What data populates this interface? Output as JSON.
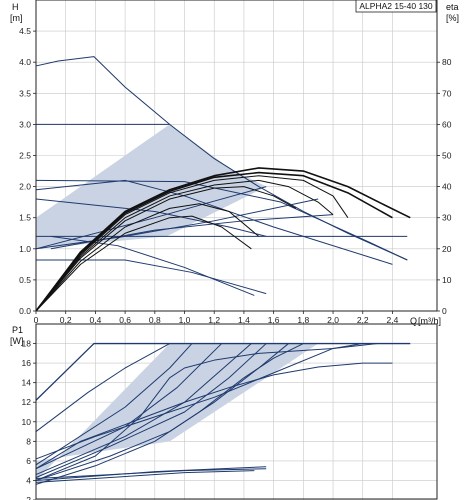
{
  "chart_data": [
    {
      "type": "line",
      "model_label": "ALPHA2 15-40 130",
      "ylabel": "H",
      "yunit": "[m]",
      "y2label": "eta",
      "y2unit": "[%]",
      "xlabel": "Q",
      "xunit": "[m³/h]",
      "xlim": [
        0,
        2.7
      ],
      "ylim": [
        0,
        5.0
      ],
      "y2lim": [
        0,
        100
      ],
      "xticks": [
        "0",
        "0,2",
        "0,4",
        "0,6",
        "0,8",
        "1,0",
        "1,2",
        "1,4",
        "1,6",
        "1,8",
        "2,0",
        "2,2",
        "2,4"
      ],
      "yticks": [
        "0.0",
        "0.5",
        "1.0",
        "1.5",
        "2.0",
        "2.5",
        "3.0",
        "3.5",
        "4.0",
        "4.5"
      ],
      "y2ticks": [
        "0",
        "10",
        "20",
        "30",
        "40",
        "50",
        "60",
        "70",
        "80"
      ],
      "grid": true,
      "colors": {
        "pump_curve": "#1f3a6e",
        "efficiency": "#111111",
        "band_fill": "#c9d3e3",
        "grid": "#c8c8c8"
      },
      "band": [
        [
          0,
          1.5
        ],
        [
          0.9,
          3.0
        ],
        [
          1.3,
          2.3
        ],
        [
          1.55,
          2.0
        ],
        [
          0.88,
          1.2
        ],
        [
          0,
          1.0
        ]
      ],
      "series": [
        {
          "kind": "pump",
          "points": [
            [
              0,
              3.94
            ],
            [
              0.15,
              4.02
            ],
            [
              0.39,
              4.09
            ],
            [
              0.6,
              3.6
            ],
            [
              0.9,
              3.0
            ],
            [
              1.2,
              2.45
            ],
            [
              1.5,
              2.0
            ],
            [
              1.8,
              1.6
            ],
            [
              2.1,
              1.25
            ],
            [
              2.5,
              0.82
            ]
          ]
        },
        {
          "kind": "pump",
          "points": [
            [
              0,
              3.0
            ],
            [
              0.9,
              3.0
            ]
          ]
        },
        {
          "kind": "pump",
          "points": [
            [
              0,
              2.1
            ],
            [
              1.0,
              2.08
            ],
            [
              1.65,
              1.75
            ],
            [
              2.25,
              1.1
            ],
            [
              2.5,
              0.82
            ]
          ]
        },
        {
          "kind": "pump",
          "points": [
            [
              0,
              1.95
            ],
            [
              0.6,
              2.1
            ],
            [
              1.0,
              1.85
            ],
            [
              1.6,
              1.35
            ],
            [
              2.4,
              0.75
            ]
          ]
        },
        {
          "kind": "pump",
          "points": [
            [
              0,
              1.8
            ],
            [
              0.8,
              1.6
            ],
            [
              1.3,
              1.35
            ],
            [
              1.55,
              1.2
            ]
          ]
        },
        {
          "kind": "pump",
          "points": [
            [
              0,
              1.2
            ],
            [
              1.2,
              1.2
            ],
            [
              2.5,
              1.2
            ]
          ]
        },
        {
          "kind": "pump",
          "points": [
            [
              0,
              1.0
            ],
            [
              0.8,
              1.5
            ],
            [
              1.55,
              2.0
            ]
          ]
        },
        {
          "kind": "pump",
          "points": [
            [
              0,
              0.82
            ],
            [
              0.6,
              0.82
            ],
            [
              1.05,
              0.62
            ],
            [
              1.55,
              0.28
            ]
          ]
        },
        {
          "kind": "pump",
          "points": [
            [
              0.1,
              1.2
            ],
            [
              0.55,
              1.05
            ],
            [
              1.0,
              0.7
            ],
            [
              1.47,
              0.25
            ]
          ]
        },
        {
          "kind": "pump",
          "points": [
            [
              0,
              1.0
            ],
            [
              0.6,
              1.2
            ],
            [
              1.2,
              1.45
            ],
            [
              1.9,
              1.8
            ]
          ]
        },
        {
          "kind": "pump",
          "points": [
            [
              0.1,
              1.0
            ],
            [
              0.8,
              1.3
            ],
            [
              1.4,
              1.45
            ],
            [
              2.0,
              1.55
            ]
          ]
        },
        {
          "kind": "eta",
          "points": [
            [
              0,
              0
            ],
            [
              0.3,
              19
            ],
            [
              0.6,
              32
            ],
            [
              0.9,
              39
            ],
            [
              1.2,
              43.5
            ],
            [
              1.5,
              46
            ],
            [
              1.8,
              45
            ],
            [
              2.1,
              40
            ],
            [
              2.35,
              34
            ],
            [
              2.52,
              30
            ]
          ]
        },
        {
          "kind": "eta",
          "points": [
            [
              0,
              0
            ],
            [
              0.3,
              18.5
            ],
            [
              0.6,
              31.5
            ],
            [
              0.9,
              38.5
            ],
            [
              1.2,
              43
            ],
            [
              1.5,
              44.5
            ],
            [
              1.8,
              43.5
            ],
            [
              2.1,
              38
            ],
            [
              2.4,
              30
            ]
          ]
        },
        {
          "kind": "eta",
          "points": [
            [
              0,
              0
            ],
            [
              0.3,
              18
            ],
            [
              0.6,
              31
            ],
            [
              0.9,
              38
            ],
            [
              1.2,
              42
            ],
            [
              1.5,
              43.5
            ],
            [
              1.8,
              42
            ],
            [
              2.0,
              37
            ],
            [
              2.1,
              30
            ]
          ]
        },
        {
          "kind": "eta",
          "points": [
            [
              0,
              0
            ],
            [
              0.3,
              17.5
            ],
            [
              0.6,
              30
            ],
            [
              0.9,
              37
            ],
            [
              1.2,
              40.5
            ],
            [
              1.5,
              42
            ],
            [
              1.7,
              40
            ],
            [
              1.9,
              35
            ],
            [
              2.0,
              31
            ]
          ]
        },
        {
          "kind": "eta",
          "points": [
            [
              0,
              0
            ],
            [
              0.3,
              17
            ],
            [
              0.6,
              29
            ],
            [
              0.9,
              36
            ],
            [
              1.2,
              39.5
            ],
            [
              1.4,
              40
            ],
            [
              1.6,
              37
            ],
            [
              1.75,
              33
            ]
          ]
        },
        {
          "kind": "eta",
          "points": [
            [
              0,
              0
            ],
            [
              0.3,
              16
            ],
            [
              0.6,
              27
            ],
            [
              0.9,
              33
            ],
            [
              1.1,
              34.5
            ],
            [
              1.3,
              32
            ],
            [
              1.5,
              24
            ]
          ]
        },
        {
          "kind": "eta",
          "points": [
            [
              0,
              0
            ],
            [
              0.3,
              15
            ],
            [
              0.6,
              25
            ],
            [
              0.9,
              30
            ],
            [
              1.05,
              30.5
            ],
            [
              1.25,
              27
            ],
            [
              1.45,
              20
            ]
          ]
        }
      ]
    },
    {
      "type": "line",
      "ylabel": "P1",
      "yunit": "[W]",
      "xlim": [
        0,
        2.7
      ],
      "ylim": [
        2,
        20
      ],
      "yticks": [
        "2",
        "4",
        "6",
        "8",
        "10",
        "12",
        "14",
        "16",
        "18"
      ],
      "grid": true,
      "colors": {
        "power_curve": "#1f3a6e",
        "band_fill": "#c9d3e3",
        "grid": "#c8c8c8"
      },
      "band": [
        [
          0,
          4.0
        ],
        [
          0.9,
          18.0
        ],
        [
          1.9,
          18.0
        ],
        [
          0.9,
          8.0
        ],
        [
          0,
          6.0
        ]
      ],
      "series": [
        {
          "kind": "power",
          "points": [
            [
              0,
              12.2
            ],
            [
              0.39,
              18
            ],
            [
              2.52,
              18
            ]
          ]
        },
        {
          "kind": "power",
          "points": [
            [
              0,
              4.0
            ],
            [
              0.4,
              6.5
            ],
            [
              0.7,
              10.5
            ],
            [
              0.9,
              14.5
            ],
            [
              1.0,
              15.5
            ],
            [
              1.2,
              16.3
            ],
            [
              1.5,
              17.0
            ],
            [
              2.0,
              17.5
            ],
            [
              2.3,
              18.0
            ]
          ]
        },
        {
          "kind": "power",
          "points": [
            [
              0,
              5.2
            ],
            [
              0.3,
              8.0
            ],
            [
              0.65,
              10.0
            ],
            [
              1.0,
              12.0
            ],
            [
              1.3,
              13.5
            ],
            [
              1.6,
              14.8
            ],
            [
              1.9,
              15.6
            ],
            [
              2.2,
              16.0
            ],
            [
              2.4,
              16.0
            ]
          ]
        },
        {
          "kind": "power",
          "points": [
            [
              0,
              6.2
            ],
            [
              0.4,
              8.5
            ],
            [
              0.8,
              10.5
            ],
            [
              1.2,
              12.5
            ],
            [
              1.6,
              15.0
            ],
            [
              2.0,
              17.5
            ],
            [
              2.2,
              18.0
            ]
          ]
        },
        {
          "kind": "power",
          "points": [
            [
              0,
              9.0
            ],
            [
              0.35,
              13.0
            ],
            [
              0.6,
              15.5
            ],
            [
              0.9,
              18.0
            ]
          ]
        },
        {
          "kind": "power",
          "points": [
            [
              0,
              3.6
            ],
            [
              0.4,
              5.5
            ],
            [
              0.8,
              8.0
            ],
            [
              1.1,
              11.0
            ],
            [
              1.4,
              14.5
            ],
            [
              1.6,
              16.5
            ],
            [
              1.8,
              18.0
            ]
          ]
        },
        {
          "kind": "power",
          "points": [
            [
              0,
              4.0
            ],
            [
              0.5,
              6.5
            ],
            [
              0.9,
              9.0
            ],
            [
              1.2,
              12.0
            ],
            [
              1.5,
              15.5
            ],
            [
              1.7,
              18.0
            ]
          ]
        },
        {
          "kind": "power",
          "points": [
            [
              0,
              4.3
            ],
            [
              0.5,
              7.5
            ],
            [
              1.0,
              11.0
            ],
            [
              1.3,
              14.5
            ],
            [
              1.55,
              18.0
            ]
          ]
        },
        {
          "kind": "power",
          "points": [
            [
              0,
              4.6
            ],
            [
              0.6,
              8.5
            ],
            [
              1.0,
              12.0
            ],
            [
              1.3,
              16.0
            ],
            [
              1.45,
              18.0
            ]
          ]
        },
        {
          "kind": "power",
          "points": [
            [
              0,
              5.2
            ],
            [
              0.6,
              9.5
            ],
            [
              0.95,
              13.5
            ],
            [
              1.25,
              18.0
            ]
          ]
        },
        {
          "kind": "power",
          "points": [
            [
              0,
              5.6
            ],
            [
              0.6,
              11.5
            ],
            [
              0.9,
              15.5
            ],
            [
              1.05,
              18.0
            ]
          ]
        },
        {
          "kind": "power",
          "points": [
            [
              0,
              4.2
            ],
            [
              0.5,
              4.6
            ],
            [
              1.0,
              5.0
            ],
            [
              1.55,
              5.2
            ]
          ]
        },
        {
          "kind": "power",
          "points": [
            [
              0,
              3.8
            ],
            [
              0.5,
              4.3
            ],
            [
              1.0,
              4.8
            ],
            [
              1.47,
              5.0
            ]
          ]
        },
        {
          "kind": "power",
          "points": [
            [
              0,
              4.0
            ],
            [
              0.8,
              4.9
            ],
            [
              1.55,
              5.4
            ]
          ]
        }
      ]
    }
  ]
}
